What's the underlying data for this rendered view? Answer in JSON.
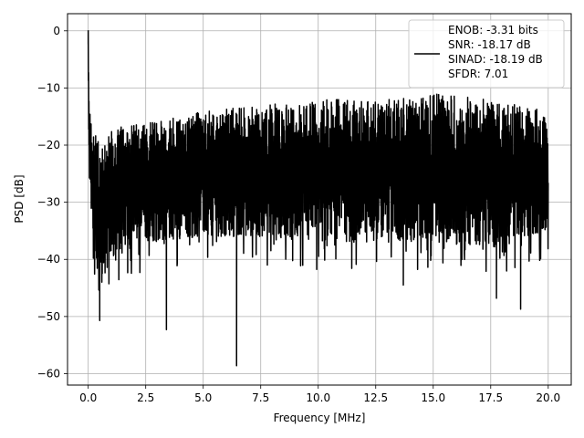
{
  "chart_data": {
    "type": "line",
    "xlabel": "Frequency [MHz]",
    "ylabel": "PSD [dB]",
    "xlim": [
      -0.9,
      21.0
    ],
    "ylim": [
      -62,
      3
    ],
    "xticks": [
      0.0,
      2.5,
      5.0,
      7.5,
      10.0,
      12.5,
      15.0,
      17.5,
      20.0
    ],
    "xtick_labels": [
      "0.0",
      "2.5",
      "5.0",
      "7.5",
      "10.0",
      "12.5",
      "15.0",
      "17.5",
      "20.0"
    ],
    "yticks": [
      0,
      -10,
      -20,
      -30,
      -40,
      -50,
      -60
    ],
    "ytick_labels": [
      "0",
      "−10",
      "−20",
      "−30",
      "−40",
      "−50",
      "−60"
    ],
    "grid": true,
    "legend_position": "top-right",
    "line_color": "#000000",
    "series": [
      {
        "name": "ENOB: -3.31 bits\nSNR: -18.17 dB\nSINAD: -18.19 dB\nSFDR: 7.01",
        "legend_lines": [
          "ENOB: -3.31 bits",
          "SNR: -18.17 dB",
          "SINAD: -18.19 dB",
          "SFDR: 7.01"
        ],
        "x_range": [
          0.0,
          20.0
        ],
        "envelope_x": [
          0.0,
          0.05,
          0.2,
          0.5,
          1.0,
          2.5,
          5.0,
          7.5,
          10.0,
          12.5,
          15.0,
          17.5,
          20.0
        ],
        "envelope_upper": [
          0.0,
          -13,
          -17,
          -20,
          -17,
          -16,
          -14,
          -13,
          -12,
          -12,
          -11,
          -12,
          -14
        ],
        "envelope_lower": [
          -8,
          -30,
          -38,
          -45,
          -40,
          -37,
          -36,
          -36,
          -37,
          -37,
          -37,
          -38,
          -35
        ],
        "spike_minima": [
          {
            "x": 0.5,
            "y": -50.7
          },
          {
            "x": 3.4,
            "y": -52.3
          },
          {
            "x": 6.45,
            "y": -58.6
          },
          {
            "x": 13.7,
            "y": -44.5
          },
          {
            "x": 17.75,
            "y": -46.8
          },
          {
            "x": 18.8,
            "y": -48.7
          }
        ],
        "spike_maxima": [
          {
            "x": 0.0,
            "y": 0.0
          }
        ]
      }
    ]
  }
}
